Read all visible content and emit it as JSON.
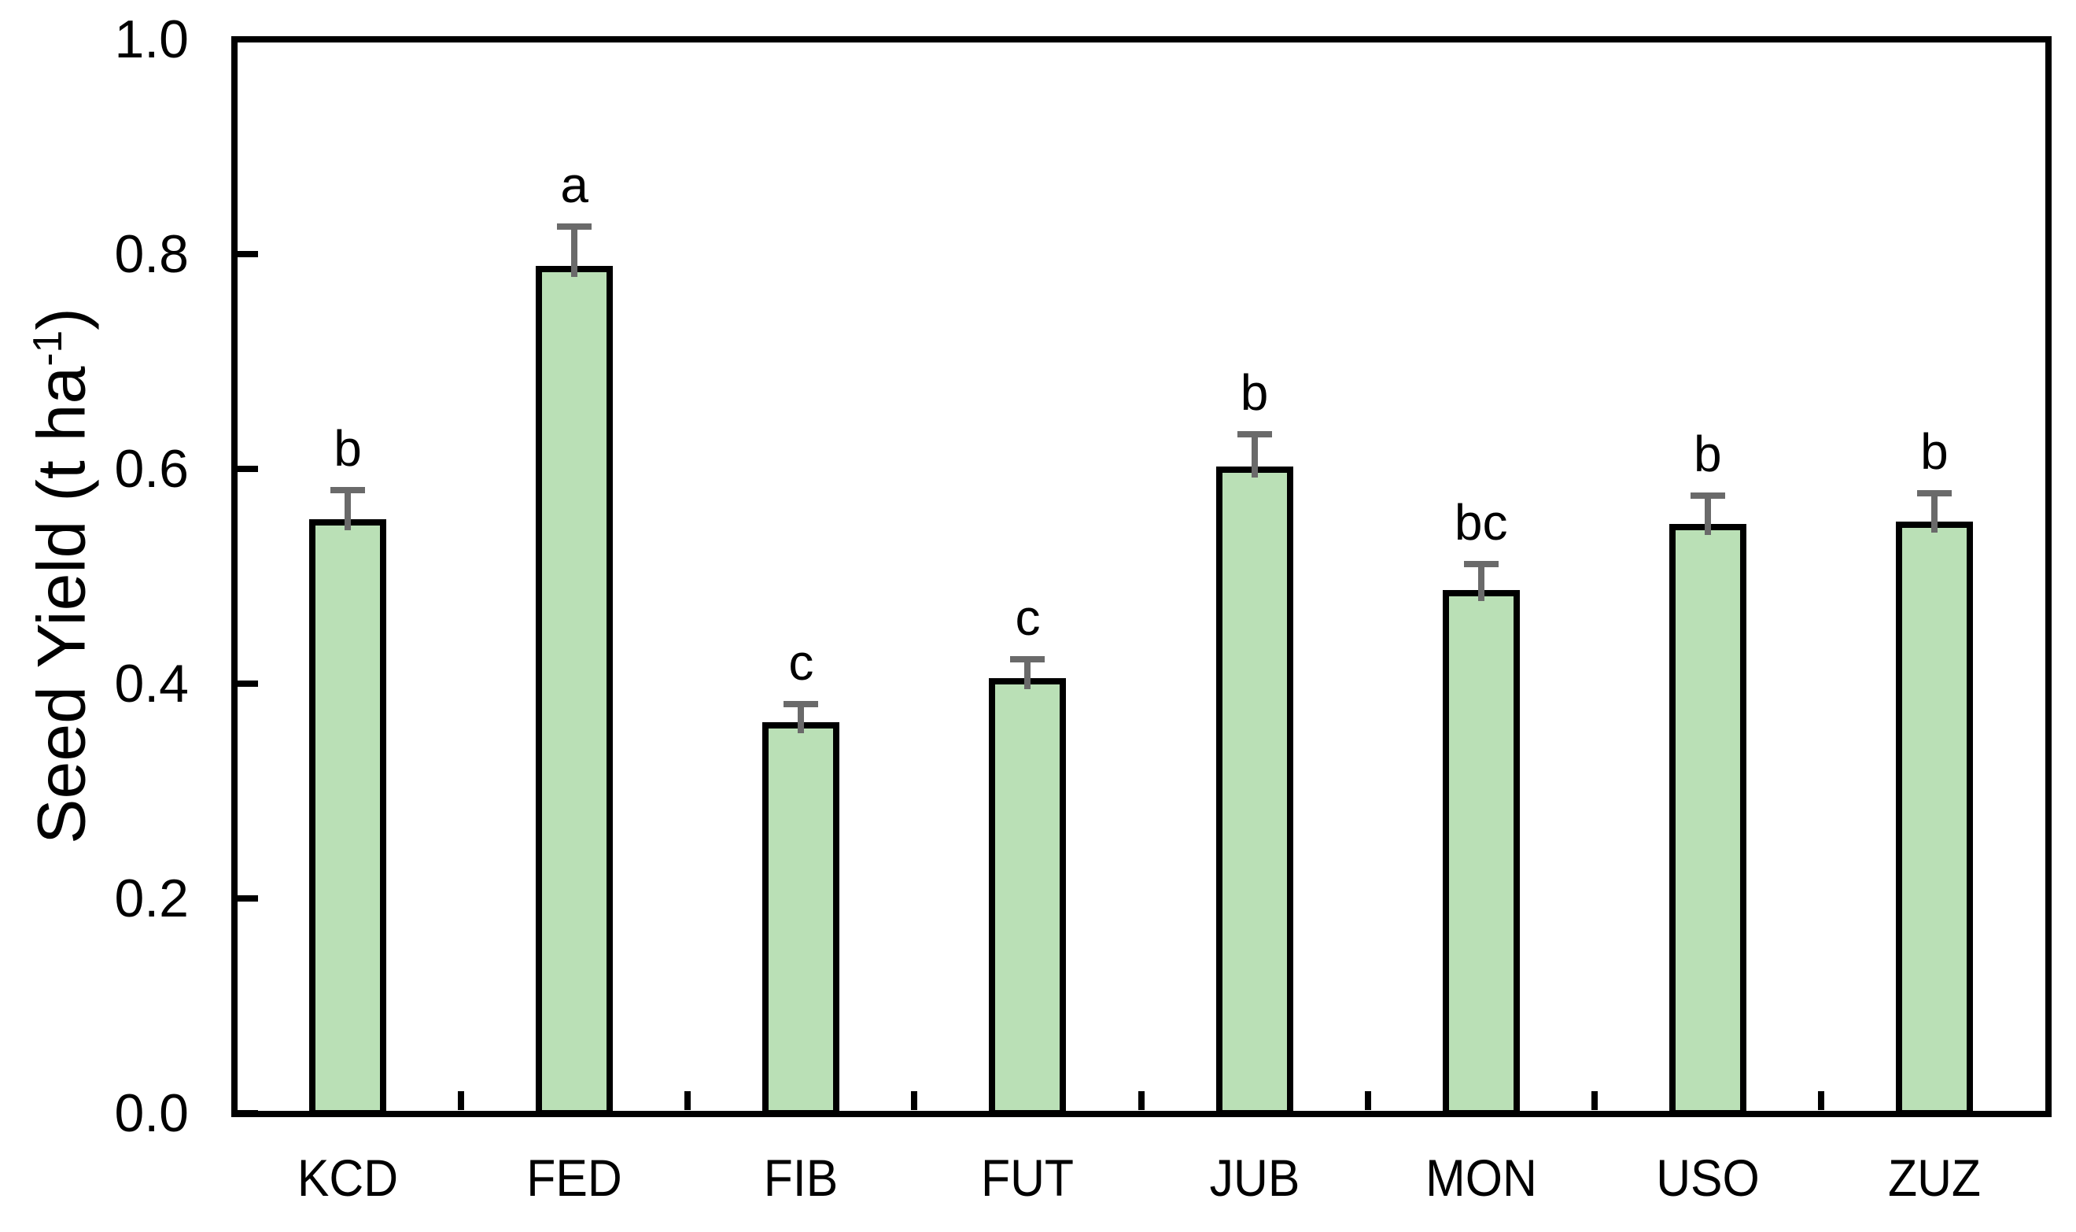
{
  "chart_data": {
    "type": "bar",
    "title": "",
    "xlabel": "",
    "ylabel": "Seed Yield (t ha⁻¹)",
    "ylabel_parts": {
      "pre": "Seed Yield (t ha",
      "sup": "-1",
      "post": ")"
    },
    "categories": [
      "KCD",
      "FED",
      "FIB",
      "FUT",
      "JUB",
      "MON",
      "USO",
      "ZUZ"
    ],
    "values": [
      0.553,
      0.789,
      0.364,
      0.405,
      0.602,
      0.487,
      0.549,
      0.551
    ],
    "errors": [
      0.027,
      0.037,
      0.017,
      0.018,
      0.03,
      0.024,
      0.026,
      0.026
    ],
    "sig_letters": [
      "b",
      "a",
      "c",
      "c",
      "b",
      "bc",
      "b",
      "b"
    ],
    "ylim": [
      0.0,
      1.0
    ],
    "yticks": [
      "0.0",
      "0.2",
      "0.4",
      "0.6",
      "0.8",
      "1.0"
    ],
    "grid": false,
    "legend": null,
    "colors": {
      "bar_fill": "#bae0b6",
      "bar_border": "#000000",
      "error_bar": "#6a6a6a",
      "axis": "#000000",
      "text": "#000000",
      "background": "#ffffff"
    }
  }
}
